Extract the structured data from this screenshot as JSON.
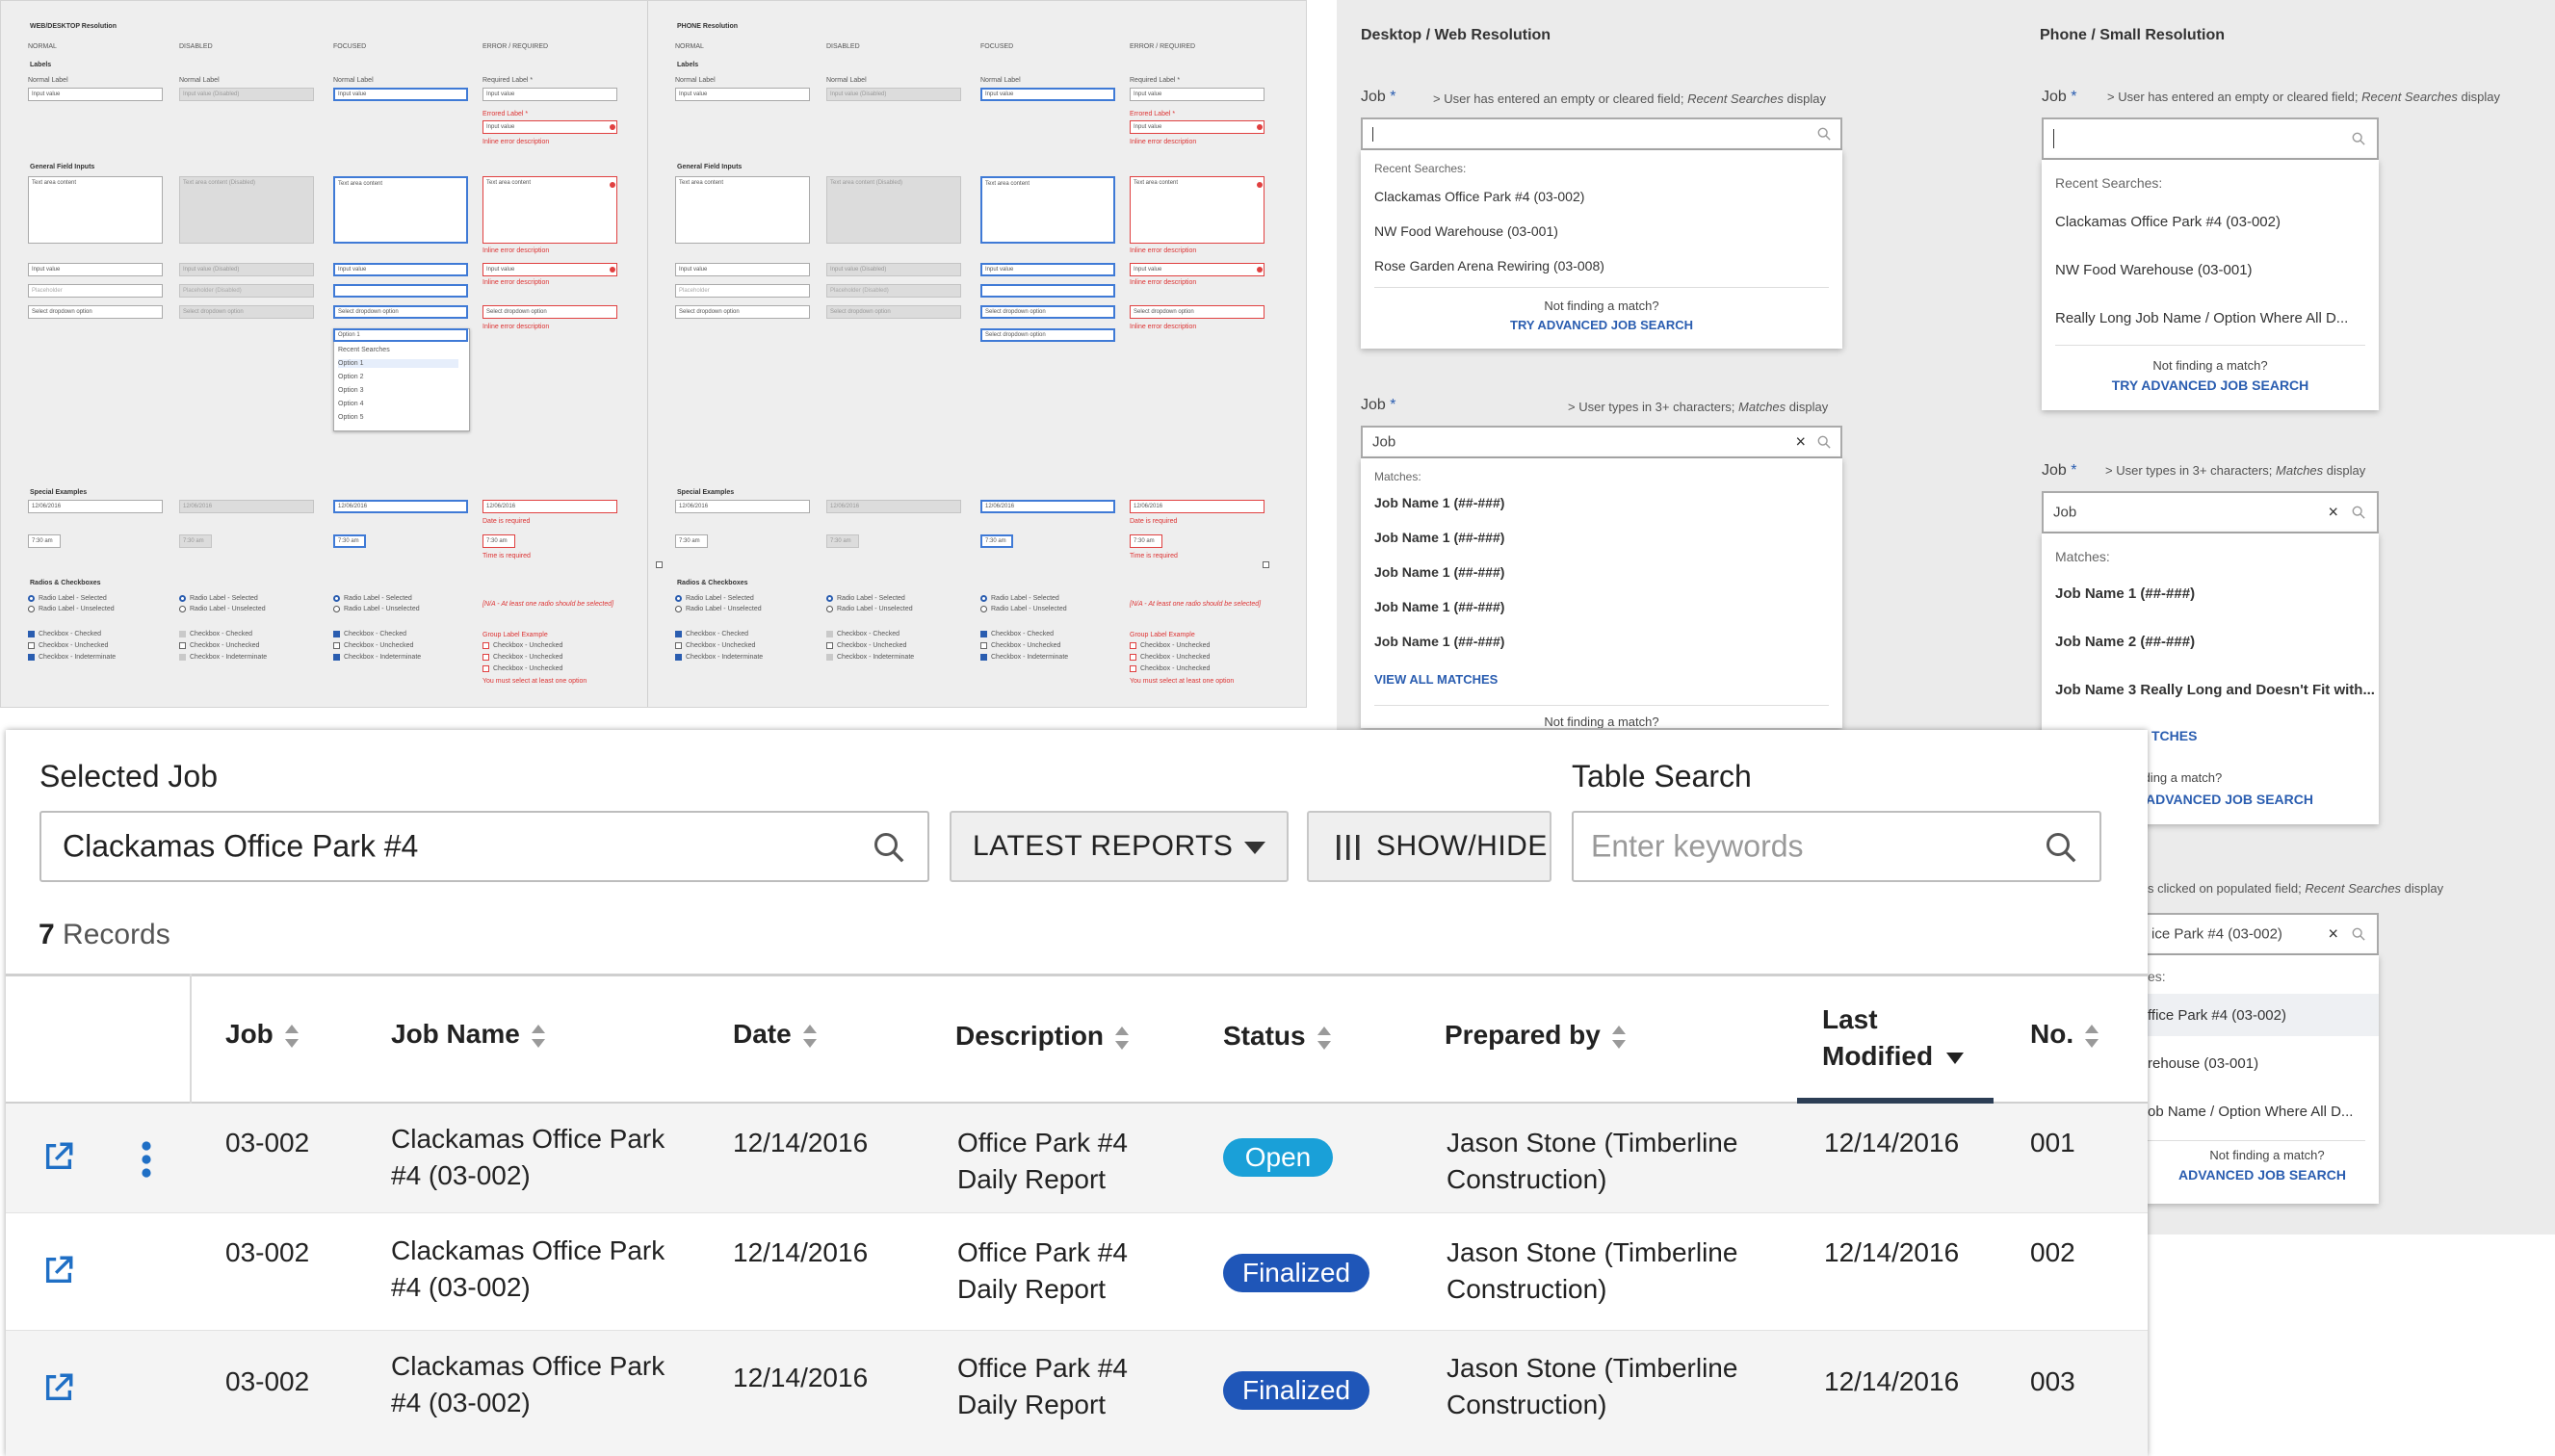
{
  "spec_sheet": {
    "sections": [
      {
        "title": "WEB/DESKTOP Resolution"
      },
      {
        "title": "PHONE Resolution"
      }
    ],
    "columns": [
      "NORMAL",
      "DISABLED",
      "FOCUSED",
      "ERROR / REQUIRED"
    ],
    "labels_heading": "Labels",
    "general_heading": "General Field Inputs",
    "special_heading": "Special Examples",
    "radios_heading": "Radios & Checkboxes",
    "normal_label": "Normal Label",
    "required_label": "Required Label *",
    "errored_label": "Errored Label *",
    "input_value": "Input value",
    "input_value_disabled": "Input value (Disabled)",
    "placeholder": "Placeholder",
    "placeholder_disabled": "Placeholder (Disabled)",
    "textarea": "Text area content",
    "textarea_disabled": "Text area content (Disabled)",
    "dropdown": "Select dropdown option",
    "dropdown_disabled": "Select dropdown option",
    "inline_error": "Inline error description",
    "date": "12/06/2016",
    "time": "7:30 am",
    "date_required": "Date is required",
    "time_required": "Time is required",
    "radio_selected": "Radio Label - Selected",
    "radio_unselected": "Radio Label - Unselected",
    "cb_checked": "Checkbox - Checked",
    "cb_unchecked": "Checkbox - Unchecked",
    "cb_indeterminate": "Checkbox - Indeterminate",
    "radio_error_note": "[N/A - At least one radio should be selected]",
    "group_label": "Group Label Example",
    "group_error": "You must select at least one option",
    "option_list": [
      "Recent Searches",
      "Option 1",
      "Option 2",
      "Option 3",
      "Option 4",
      "Option 5"
    ],
    "option_selected": "Option 1"
  },
  "search_spec": {
    "desktop_heading": "Desktop / Web Resolution",
    "phone_heading": "Phone / Small Resolution",
    "field_label": "Job",
    "required_mark": "*",
    "note_empty": "> User has entered an empty or cleared field; ",
    "note_empty_em": "Recent Searches",
    "note_empty_tail": " display",
    "note_typing": "> User types in 3+ characters; ",
    "note_typing_em": "Matches",
    "note_typing_tail": " display",
    "note_clicked": "s clicked on populated field; ",
    "note_clicked_em": "Recent Searches",
    "note_clicked_tail": " display",
    "recent_heading": "Recent Searches:",
    "recent_desktop": [
      "Clackamas Office Park #4 (03-002)",
      "NW Food Warehouse (03-001)",
      "Rose Garden Arena Rewiring (03-008)"
    ],
    "recent_phone": [
      "Clackamas Office Park #4 (03-002)",
      "NW Food Warehouse (03-001)",
      "Really Long Job Name / Option Where All D..."
    ],
    "not_finding": "Not finding a match?",
    "advanced_link": "TRY ADVANCED JOB SEARCH",
    "advanced_link_cut": "ADVANCED JOB SEARCH",
    "typed_query": "Job",
    "matches_heading": "Matches:",
    "matches_desktop": [
      "Job Name 1 (##-###)",
      "Job Name 1 (##-###)",
      "Job Name 1 (##-###)",
      "Job Name 1 (##-###)",
      "Job Name 1 (##-###)"
    ],
    "view_all": "VIEW ALL MATCHES",
    "view_all_cut": "TCHES",
    "matches_phone": [
      "Job Name 1 (##-###)",
      "Job Name 2 (##-###)",
      "Job Name 3 Really Long and Doesn't Fit with..."
    ],
    "populated_value": "ice Park #4 (03-002)",
    "cut_heading": "es:",
    "recent_cut": [
      "ffice Park #4 (03-002)",
      "rehouse (03-001)",
      "ob Name / Option Where All D..."
    ]
  },
  "toolbar": {
    "selected_job_label": "Selected Job",
    "selected_job_value": "Clackamas Office Park #4",
    "reports_dropdown": "LATEST REPORTS",
    "show_hide": "SHOW/HIDE",
    "table_search_label": "Table Search",
    "table_search_placeholder": "Enter keywords"
  },
  "records": {
    "count": "7",
    "label": "Records"
  },
  "table": {
    "columns": [
      {
        "label": "Job"
      },
      {
        "label": "Job Name"
      },
      {
        "label": "Date"
      },
      {
        "label": "Description"
      },
      {
        "label": "Status"
      },
      {
        "label": "Prepared by"
      },
      {
        "label": "Last",
        "label2": "Modified"
      },
      {
        "label": "No."
      }
    ],
    "rows": [
      {
        "job": "03-002",
        "name1": "Clackamas Office Park",
        "name2": "#4 (03-002)",
        "date": "12/14/2016",
        "desc1": "Office Park #4",
        "desc2": "Daily Report",
        "status": "Open",
        "prep1": "Jason Stone (Timberline",
        "prep2": "Construction)",
        "modified": "12/14/2016",
        "no": "001"
      },
      {
        "job": "03-002",
        "name1": "Clackamas Office Park",
        "name2": "#4 (03-002)",
        "date": "12/14/2016",
        "desc1": "Office Park #4",
        "desc2": "Daily Report",
        "status": "Finalized",
        "prep1": "Jason Stone (Timberline",
        "prep2": "Construction)",
        "modified": "12/14/2016",
        "no": "002"
      },
      {
        "job": "03-002",
        "name1": "Clackamas Office Park",
        "name2": "#4 (03-002)",
        "date": "12/14/2016",
        "desc1": "Office Park #4",
        "desc2": "Daily Report",
        "status": "Finalized",
        "prep1": "Jason Stone (Timberline",
        "prep2": "Construction)",
        "modified": "12/14/2016",
        "no": "003"
      }
    ]
  },
  "colors": {
    "open_badge": "#1aa0d8",
    "finalized_badge": "#1f56b8",
    "accent_link": "#2a5db0",
    "sort_active_underline": "#2c3e55",
    "row_alt": "#f4f4f4"
  },
  "icons": {
    "search": "search-icon",
    "clear": "clear-icon",
    "dropdown": "caret-down-icon",
    "columns": "columns-icon",
    "open_external": "external-link-icon",
    "more": "kebab-icon",
    "sort": "sort-icon"
  }
}
